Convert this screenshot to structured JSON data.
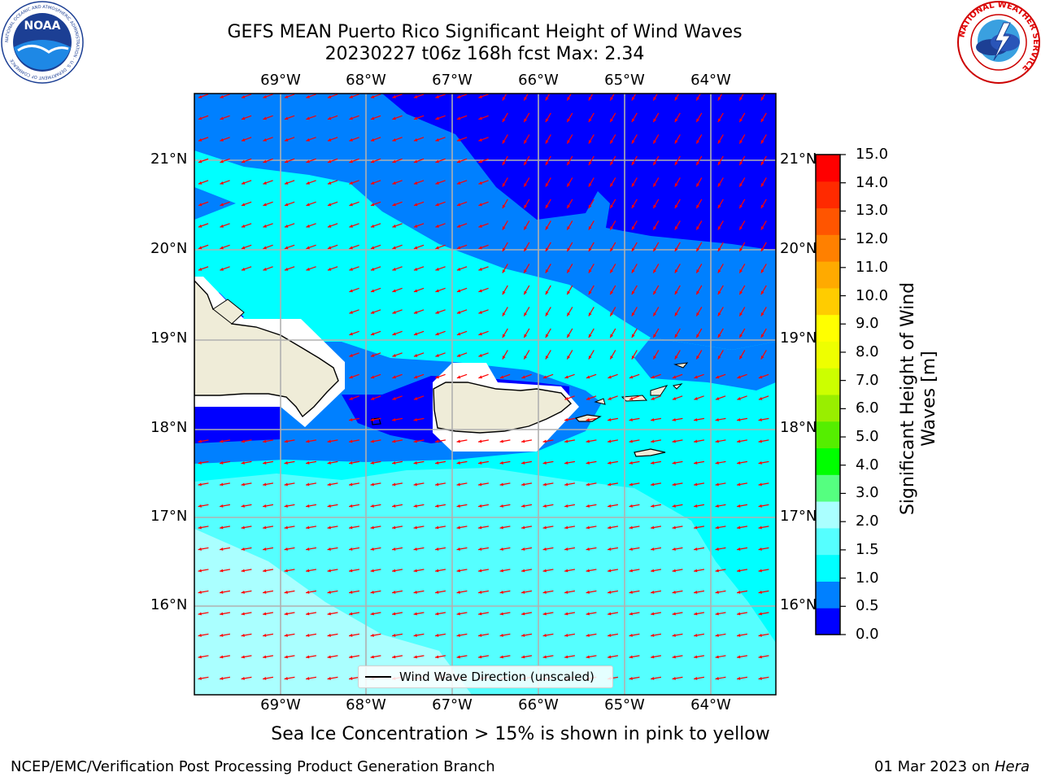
{
  "header": {
    "title_line1": "GEFS MEAN Puerto Rico Significant Height of Wind Waves",
    "title_line2": "20230227 t06z 168h fcst   Max: 2.34"
  },
  "logos": {
    "noaa": {
      "text": "NOAA",
      "ring_text": "NATIONAL OCEANIC AND ATMOSPHERIC ADMINISTRATION · U.S. DEPARTMENT OF COMMERCE"
    },
    "nws": {
      "ring_text": "NATIONAL WEATHER SERVICE"
    }
  },
  "map": {
    "lon_labels": [
      "69°W",
      "68°W",
      "67°W",
      "66°W",
      "65°W",
      "64°W"
    ],
    "lat_labels": [
      "21°N",
      "20°N",
      "19°N",
      "18°N",
      "17°N",
      "16°N"
    ],
    "land_color": "#efecd8",
    "arrow_color": "#ff0000",
    "legend_label": "Wind Wave Direction (unscaled)"
  },
  "colorbar": {
    "title": "Significant Height of Wind Waves [m]",
    "ticks": [
      "0.0",
      "0.5",
      "1.0",
      "1.5",
      "2.0",
      "3.0",
      "4.0",
      "5.0",
      "6.0",
      "7.0",
      "8.0",
      "9.0",
      "10.0",
      "11.0",
      "12.0",
      "13.0",
      "14.0",
      "15.0"
    ],
    "colors": [
      "#0000ff",
      "#0080ff",
      "#00ffff",
      "#55ffff",
      "#aaffff",
      "#55ff80",
      "#00ff00",
      "#55ee00",
      "#99ee00",
      "#ccff00",
      "#eeff00",
      "#ffff00",
      "#ffcc00",
      "#ffaa00",
      "#ff8000",
      "#ff5500",
      "#ff2a00",
      "#ff0000"
    ]
  },
  "notes": {
    "ice": "Sea Ice Concentration > 15% is shown in pink to yellow",
    "footer_left": "NCEP/EMC/Verification Post Processing Product Generation Branch",
    "footer_date": "01 Mar 2023 on ",
    "footer_host": "Hera"
  }
}
